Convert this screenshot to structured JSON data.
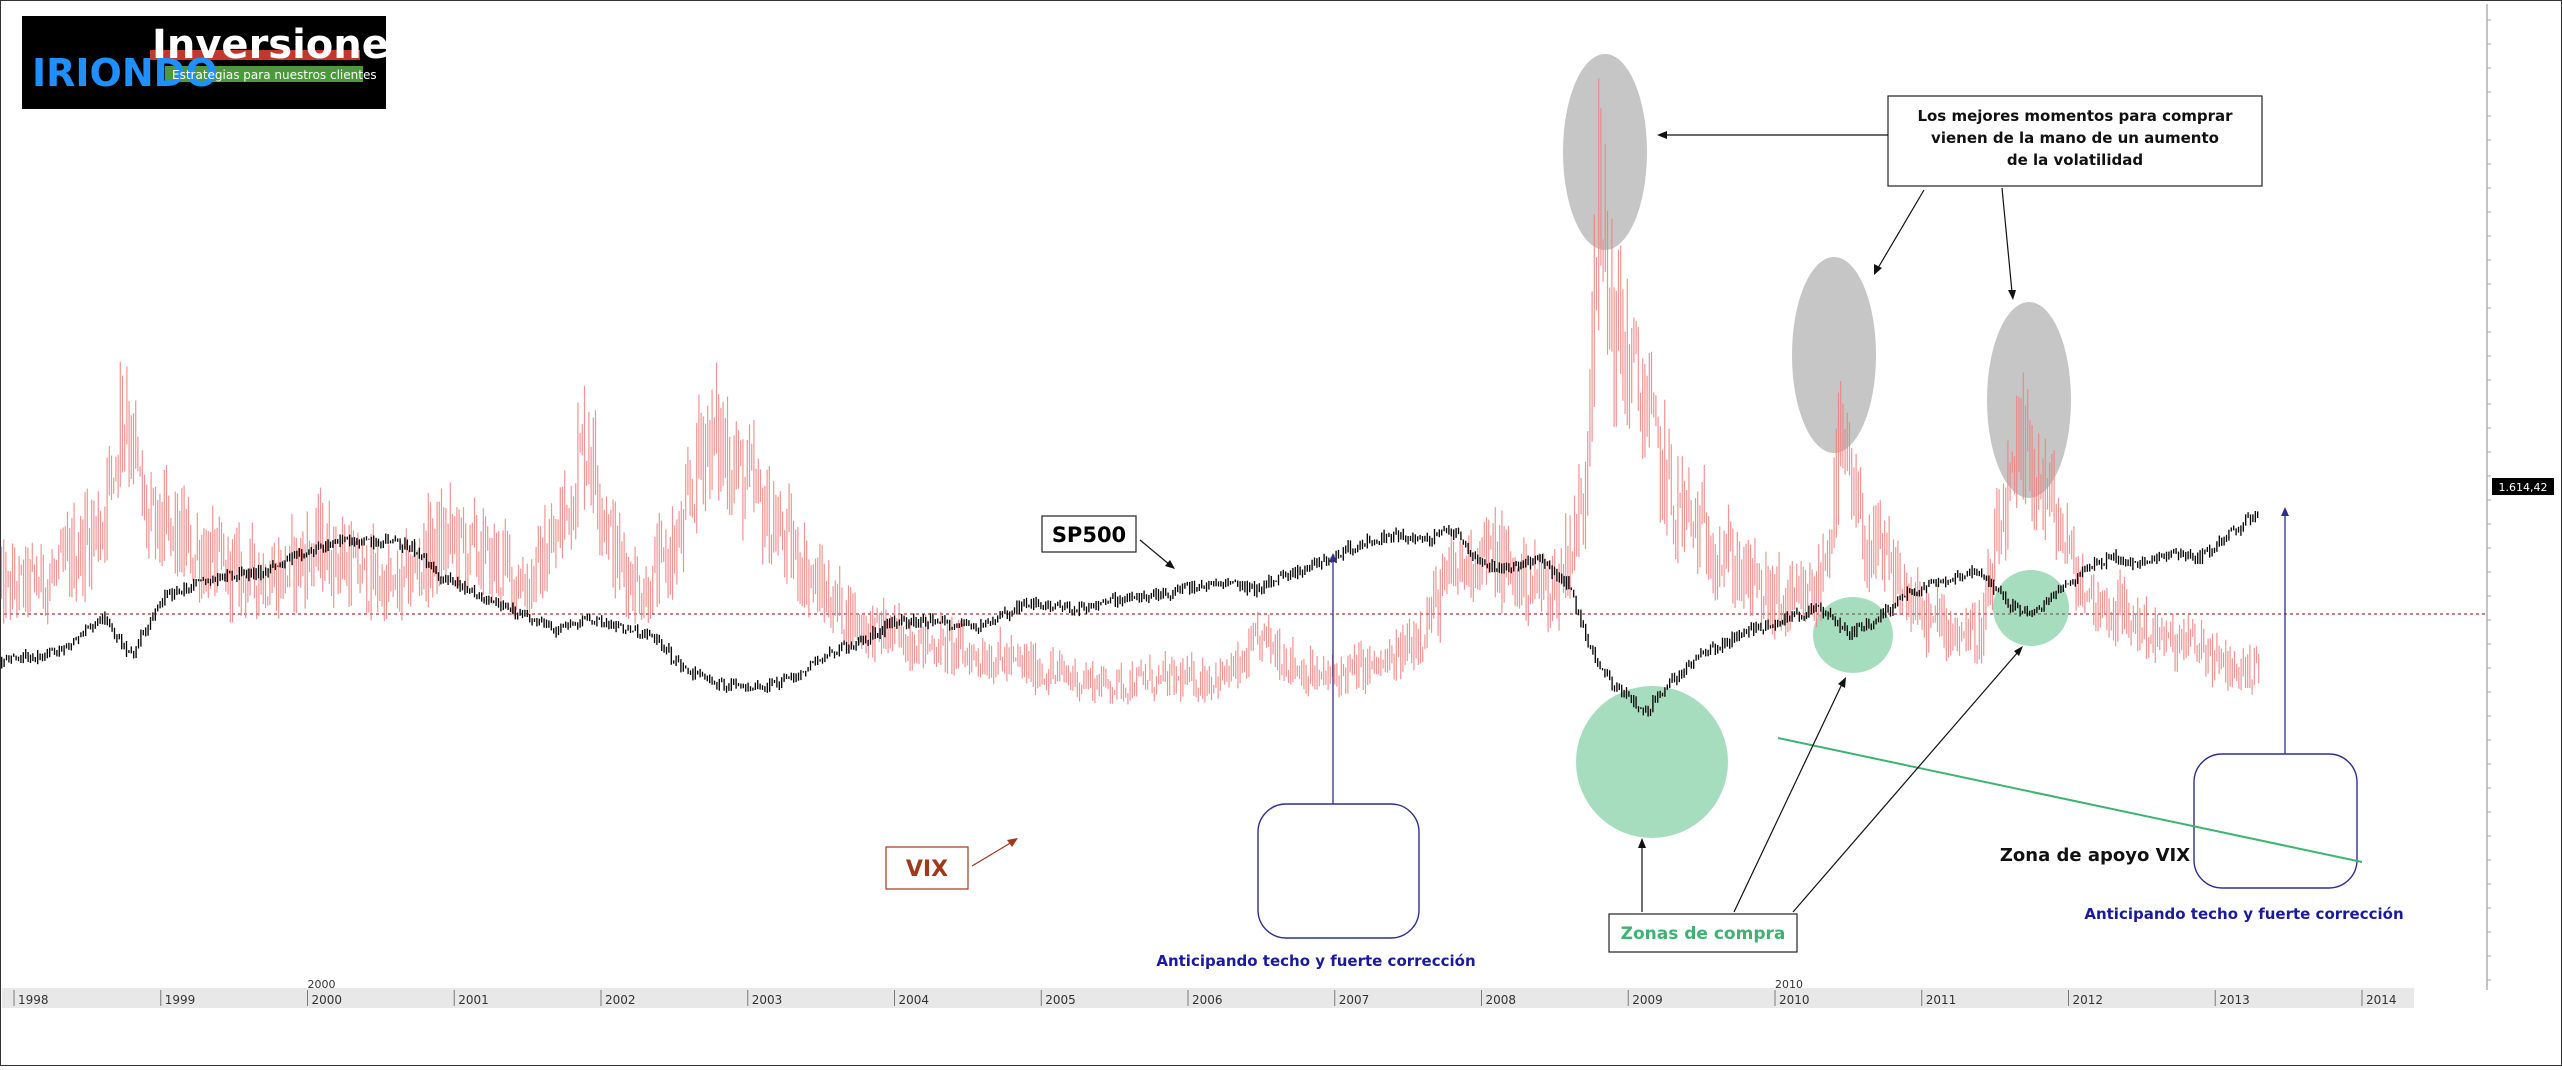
{
  "logo": {
    "brand": "IRIONDO",
    "name": "Inversiones",
    "tagline": "Estrategias para nuestros clientes"
  },
  "colors": {
    "sp500": "#000000",
    "vix": "#f08080",
    "volatility_highlight": "#808080",
    "buy_zone": "#3cb371",
    "anticipation_box": "#2e2e8f",
    "support_line": "#3cb371",
    "axis": "#7a7a7a",
    "anticipation_text": "#1a1aa0",
    "buy_zone_text": "#3cb371",
    "vix_label_text": "#a0381a"
  },
  "chart_data": {
    "type": "line",
    "price_readout": "1.614,42",
    "x_axis": {
      "tick_labels": [
        "1998",
        "1999",
        "2000",
        "2001",
        "2002",
        "2003",
        "2004",
        "2005",
        "2006",
        "2007",
        "2008",
        "2009",
        "2010",
        "2011",
        "2012",
        "2013",
        "2014"
      ],
      "secondary_labels": [
        "2000",
        "2010"
      ],
      "range": [
        1997.9,
        2014.3
      ]
    },
    "reference_line_value": 1160,
    "series": [
      {
        "name": "SP500",
        "x": [
          1997.9,
          1998.3,
          1998.6,
          1998.8,
          1999.0,
          1999.4,
          1999.7,
          2000.0,
          2000.2,
          2000.5,
          2000.7,
          2000.9,
          2001.2,
          2001.5,
          2001.7,
          2001.9,
          2002.2,
          2002.4,
          2002.55,
          2002.8,
          2003.1,
          2003.3,
          2003.5,
          2003.8,
          2004.0,
          2004.3,
          2004.6,
          2004.9,
          2005.2,
          2005.5,
          2005.8,
          2006.0,
          2006.3,
          2006.45,
          2006.6,
          2006.9,
          2007.1,
          2007.4,
          2007.6,
          2007.8,
          2008.0,
          2008.2,
          2008.4,
          2008.6,
          2008.75,
          2008.9,
          2009.0,
          2009.1,
          2009.3,
          2009.5,
          2009.8,
          2010.0,
          2010.3,
          2010.5,
          2010.7,
          2010.9,
          2011.2,
          2011.4,
          2011.6,
          2011.75,
          2011.9,
          2012.1,
          2012.3,
          2012.5,
          2012.7,
          2012.9,
          2013.1,
          2013.3
        ],
        "values": [
          960,
          1000,
          1150,
          980,
          1230,
          1320,
          1340,
          1420,
          1470,
          1470,
          1450,
          1320,
          1230,
          1150,
          1090,
          1140,
          1100,
          1040,
          930,
          860,
          850,
          880,
          980,
          1050,
          1130,
          1125,
          1110,
          1210,
          1180,
          1220,
          1240,
          1270,
          1290,
          1265,
          1310,
          1380,
          1440,
          1500,
          1470,
          1520,
          1370,
          1360,
          1400,
          1270,
          1000,
          850,
          820,
          730,
          880,
          990,
          1080,
          1130,
          1180,
          1080,
          1140,
          1250,
          1320,
          1340,
          1200,
          1150,
          1240,
          1350,
          1400,
          1370,
          1420,
          1400,
          1500,
          1600
        ]
      },
      {
        "name": "VIX",
        "x": [
          1997.9,
          1998.3,
          1998.6,
          1998.75,
          1998.9,
          1999.2,
          1999.5,
          1999.8,
          2000.1,
          2000.3,
          2000.6,
          2000.8,
          2001.0,
          2001.2,
          2001.5,
          2001.7,
          2001.9,
          2002.1,
          2002.3,
          2002.55,
          2002.7,
          2002.85,
          2003.0,
          2003.2,
          2003.5,
          2003.8,
          2004.0,
          2004.3,
          2004.5,
          2004.8,
          2005.0,
          2005.3,
          2005.5,
          2005.7,
          2005.9,
          2006.1,
          2006.35,
          2006.5,
          2006.7,
          2006.9,
          2007.1,
          2007.4,
          2007.6,
          2007.8,
          2008.0,
          2008.2,
          2008.5,
          2008.7,
          2008.78,
          2008.9,
          2009.1,
          2009.3,
          2009.6,
          2009.9,
          2010.1,
          2010.3,
          2010.45,
          2010.6,
          2010.8,
          2011.0,
          2011.2,
          2011.4,
          2011.55,
          2011.7,
          2011.9,
          2012.1,
          2012.3,
          2012.5,
          2012.7,
          2012.9,
          2013.0,
          2013.2,
          2013.3
        ],
        "values": [
          22,
          24,
          30,
          44,
          30,
          27,
          24,
          24,
          27,
          25,
          22,
          26,
          28,
          26,
          23,
          28,
          40,
          26,
          22,
          28,
          40,
          38,
          34,
          29,
          22,
          18,
          17,
          16,
          15,
          14,
          13,
          12,
          11.5,
          12,
          12,
          12,
          13,
          17,
          14,
          12,
          13,
          14,
          18,
          24,
          27,
          24,
          22,
          32,
          66,
          52,
          44,
          32,
          27,
          22,
          20,
          22,
          38,
          28,
          24,
          19,
          18,
          17,
          30,
          38,
          31,
          22,
          20,
          18,
          16,
          16,
          14,
          13,
          14
        ]
      }
    ]
  },
  "annotations": {
    "sp500_label": "SP500",
    "vix_label": "VIX",
    "callout": [
      "Los mejores momentos para comprar",
      "vienen de la mano de un aumento",
      "de la volatilidad"
    ],
    "buy_zones": "Zonas de compra",
    "support_zone": "Zona de apoyo VIX",
    "anticipating_1": "Anticipando techo y fuerte corrección",
    "anticipating_2": "Anticipando techo y fuerte corrección"
  }
}
